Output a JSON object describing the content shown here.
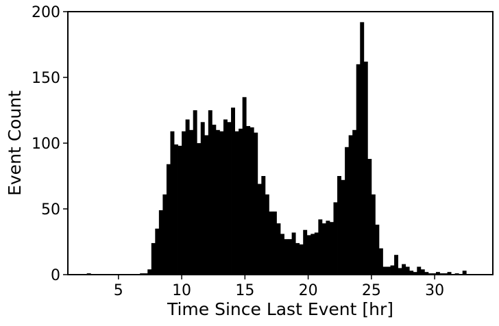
{
  "chart_data": {
    "type": "bar",
    "title": "",
    "xlabel": "Time Since Last Event [hr]",
    "ylabel": "Event Count",
    "xlim": [
      1.0,
      34.6
    ],
    "ylim": [
      0,
      200
    ],
    "xticks": [
      5,
      10,
      15,
      20,
      25,
      30
    ],
    "yticks": [
      0,
      50,
      100,
      150,
      200
    ],
    "grid": false,
    "bar_color": "#000000",
    "bin_start": 1.9,
    "bin_width": 0.3,
    "values": [
      0,
      0,
      1,
      0,
      0,
      0,
      0,
      0,
      0,
      0,
      0,
      0,
      0,
      0,
      0,
      0,
      1,
      1,
      4,
      24,
      35,
      49,
      61,
      84,
      109,
      99,
      98,
      109,
      118,
      110,
      125,
      100,
      116,
      106,
      125,
      114,
      110,
      109,
      118,
      116,
      127,
      109,
      111,
      135,
      113,
      112,
      108,
      69,
      75,
      61,
      48,
      48,
      39,
      31,
      27,
      27,
      32,
      24,
      23,
      34,
      30,
      31,
      32,
      42,
      39,
      41,
      40,
      55,
      75,
      72,
      97,
      106,
      110,
      160,
      192,
      162,
      88,
      61,
      38,
      20,
      6,
      6,
      7,
      15,
      5,
      8,
      6,
      3,
      2,
      6,
      4,
      2,
      1,
      1,
      2,
      1,
      1,
      2,
      0,
      1,
      0,
      3,
      0
    ]
  }
}
